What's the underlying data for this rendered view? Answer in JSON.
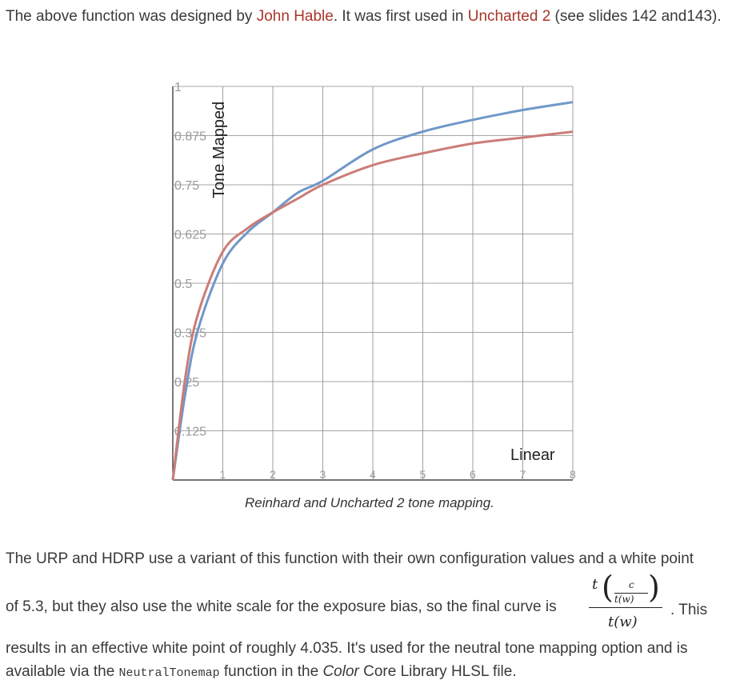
{
  "intro": {
    "t1": "The above function was designed by ",
    "link1": "John Hable",
    "t2": ". It was first used in ",
    "link2": "Uncharted 2",
    "t3": " (see slides 142 and143)."
  },
  "chart_data": {
    "type": "line",
    "xlabel": "Linear",
    "ylabel": "Tone Mapped",
    "xlim": [
      0,
      8
    ],
    "ylim": [
      0,
      1
    ],
    "x_ticks": [
      "1",
      "2",
      "3",
      "4",
      "5",
      "6",
      "7",
      "8"
    ],
    "y_ticks": [
      "0.125",
      "0.25",
      "0.375",
      "0.5",
      "0.625",
      "0.75",
      "0.875",
      "1"
    ],
    "grid": true,
    "series": [
      {
        "color": "#7097c8",
        "x": [
          0,
          0.25,
          0.5,
          1,
          1.5,
          2,
          2.5,
          3,
          4,
          5,
          6,
          7,
          8
        ],
        "y": [
          0,
          0.22,
          0.38,
          0.55,
          0.63,
          0.68,
          0.73,
          0.76,
          0.84,
          0.885,
          0.915,
          0.94,
          0.96
        ]
      },
      {
        "color": "#cc7c78",
        "x": [
          0,
          0.25,
          0.5,
          1,
          1.5,
          2,
          2.5,
          3,
          4,
          5,
          6,
          7,
          8
        ],
        "y": [
          0,
          0.26,
          0.42,
          0.58,
          0.64,
          0.68,
          0.715,
          0.75,
          0.8,
          0.83,
          0.855,
          0.87,
          0.885
        ]
      }
    ],
    "caption": "Reinhard and Uncharted 2 tone mapping."
  },
  "outro": {
    "line1": "The URP and HDRP use a variant of this function with their own configuration values and a white point",
    "line2": "of 5.3, but they also use the white scale for the exposure bias, so the final curve is",
    "this": ". This",
    "t3a": "results in an effective white point of roughly 4.035. It's used for the neutral tone mapping option and is available via the ",
    "code": "NeutralTonemap",
    "t3b": " function in the ",
    "em": "Color",
    "t3c": " Core Library HLSL file.",
    "formula": {
      "t": "t",
      "c": "c",
      "inner_den": "t(w)",
      "den": "t(w)"
    }
  }
}
